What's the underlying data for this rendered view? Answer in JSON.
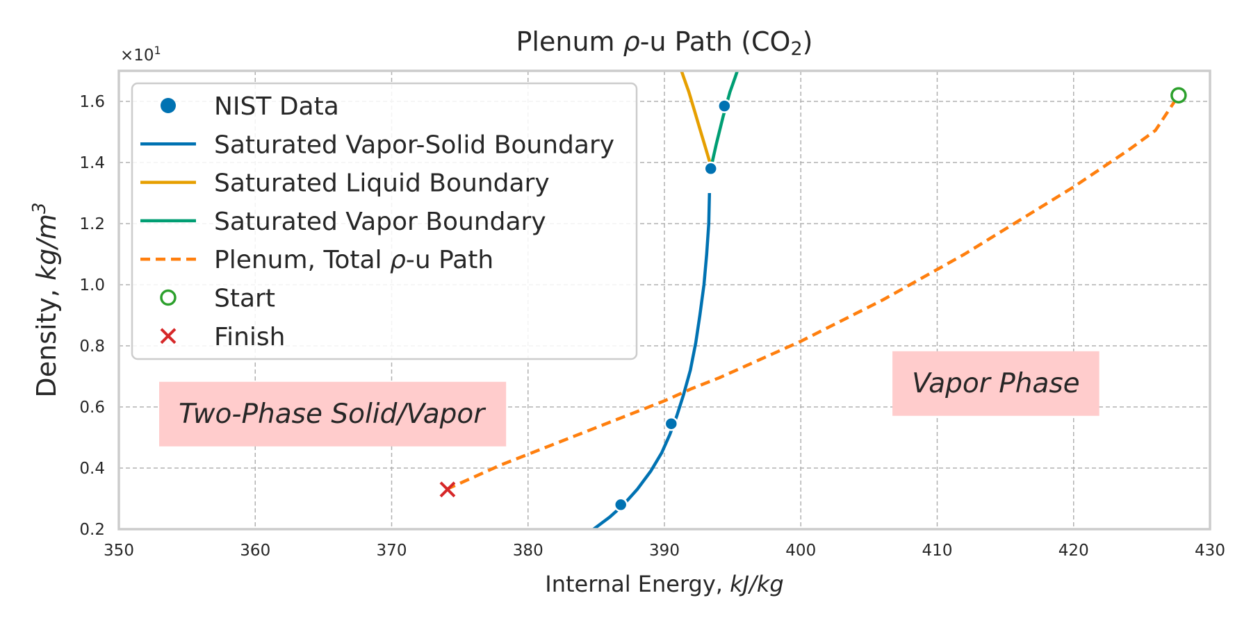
{
  "chart_data": {
    "type": "line",
    "title_prefix": "Plenum ",
    "title_rho": "ρ",
    "title_mid": "-u Path (CO",
    "title_sub": "2",
    "title_suffix": ")",
    "xlabel_text": "Internal Energy, ",
    "xlabel_unit": "kJ/kg",
    "ylabel_text": "Density, ",
    "ylabel_unit": "kg/m",
    "ylabel_sup": "3",
    "offset_base": "×10",
    "offset_exp": "1",
    "xlim": [
      350,
      430
    ],
    "ylim": [
      0.2,
      1.7
    ],
    "xticks": [
      350,
      360,
      370,
      380,
      390,
      400,
      410,
      420,
      430
    ],
    "xtick_labels": [
      "350",
      "360",
      "370",
      "380",
      "390",
      "400",
      "410",
      "420",
      "430"
    ],
    "yticks": [
      0.2,
      0.4,
      0.6,
      0.8,
      1.0,
      1.2,
      1.4,
      1.6
    ],
    "ytick_labels": [
      "0.2",
      "0.4",
      "0.6",
      "0.8",
      "1.0",
      "1.2",
      "1.4",
      "1.6"
    ],
    "grid": true,
    "legend_position": "upper-left",
    "series": [
      {
        "name": "Saturated Vapor-Solid Boundary",
        "style": "solid",
        "color": "#0072b2",
        "x": [
          384.8,
          386.0,
          387.0,
          388.0,
          389.0,
          389.8,
          390.4,
          390.9,
          391.4,
          391.9,
          392.3,
          392.6,
          392.9,
          393.1,
          393.25,
          393.3
        ],
        "y": [
          0.2,
          0.24,
          0.28,
          0.33,
          0.39,
          0.45,
          0.51,
          0.57,
          0.64,
          0.72,
          0.81,
          0.9,
          1.0,
          1.1,
          1.2,
          1.3
        ]
      },
      {
        "name": "Saturated Liquid Boundary",
        "style": "solid",
        "color": "#e69f00",
        "x": [
          393.4,
          393.0,
          392.6,
          392.2,
          391.8,
          391.4,
          391.1
        ],
        "y": [
          1.39,
          1.45,
          1.51,
          1.57,
          1.63,
          1.68,
          1.72
        ]
      },
      {
        "name": "Saturated Vapor Boundary",
        "style": "solid",
        "color": "#009e73",
        "x": [
          393.4,
          393.8,
          394.3,
          394.8,
          395.2,
          395.5
        ],
        "y": [
          1.38,
          1.46,
          1.55,
          1.63,
          1.68,
          1.72
        ]
      },
      {
        "name": "Plenum, Total ρ-u Path",
        "style": "dashed",
        "color": "#ff7f0e",
        "x": [
          374.0,
          376.0,
          378.0,
          380.0,
          382.0,
          384.0,
          386.0,
          388.0,
          390.0,
          392.0,
          394.0,
          396.0,
          398.0,
          400.0,
          402.0,
          404.0,
          406.0,
          408.0,
          410.0,
          412.0,
          414.0,
          416.0,
          418.0,
          420.0,
          422.0,
          424.0,
          426.0,
          427.7
        ],
        "y": [
          0.33,
          0.37,
          0.41,
          0.445,
          0.48,
          0.515,
          0.55,
          0.585,
          0.62,
          0.66,
          0.695,
          0.735,
          0.775,
          0.815,
          0.86,
          0.905,
          0.95,
          1.0,
          1.05,
          1.1,
          1.155,
          1.21,
          1.265,
          1.32,
          1.38,
          1.44,
          1.505,
          1.62
        ]
      }
    ],
    "nist_data": {
      "name": "NIST Data",
      "color": "#0072b2",
      "x": [
        386.8,
        390.5,
        393.4,
        394.4
      ],
      "y": [
        0.28,
        0.545,
        1.38,
        1.585
      ]
    },
    "start": {
      "name": "Start",
      "color": "#2ca02c",
      "x": 427.7,
      "y": 1.62
    },
    "finish": {
      "name": "Finish",
      "color": "#d62728",
      "x": 374.1,
      "y": 0.33
    },
    "legend_entries": [
      {
        "label": "NIST Data",
        "kind": "dot",
        "color": "#0072b2"
      },
      {
        "label": "Saturated Vapor-Solid Boundary",
        "kind": "line",
        "color": "#0072b2"
      },
      {
        "label": "Saturated Liquid Boundary",
        "kind": "line",
        "color": "#e69f00"
      },
      {
        "label": "Saturated Vapor Boundary",
        "kind": "line",
        "color": "#009e73"
      },
      {
        "label_pre": "Plenum, Total ",
        "label_rho": "ρ",
        "label_post": "-u Path",
        "kind": "dash",
        "color": "#ff7f0e"
      },
      {
        "label": "Start",
        "kind": "ring",
        "color": "#2ca02c"
      },
      {
        "label": "Finish",
        "kind": "cross",
        "color": "#d62728"
      }
    ],
    "annotations": [
      {
        "text": "Two-Phase Solid/Vapor",
        "x": 365.6,
        "y": 0.58,
        "box_color": "#ffcccc"
      },
      {
        "text": "Vapor Phase",
        "x": 414.3,
        "y": 0.68,
        "box_color": "#ffcccc"
      }
    ]
  }
}
